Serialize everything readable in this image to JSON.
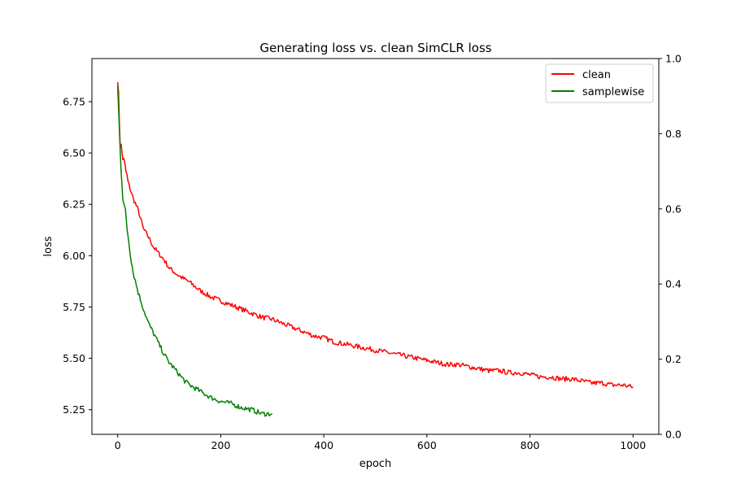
{
  "chart_data": {
    "type": "line",
    "title": "Generating loss vs. clean SimCLR loss",
    "xlabel": "epoch",
    "ylabel": "loss",
    "xlim": [
      -50,
      1050
    ],
    "ylim": [
      5.13,
      6.96
    ],
    "y2lim": [
      0.0,
      1.0
    ],
    "x_ticks": [
      0,
      200,
      400,
      600,
      800,
      1000
    ],
    "y_ticks": [
      5.25,
      5.5,
      5.75,
      6.0,
      6.25,
      6.5,
      6.75
    ],
    "y2_ticks": [
      0.0,
      0.2,
      0.4,
      0.6,
      0.8,
      1.0
    ],
    "x_tick_labels": [
      "0",
      "200",
      "400",
      "600",
      "800",
      "1000"
    ],
    "y_tick_labels": [
      "5.25",
      "5.50",
      "5.75",
      "6.00",
      "6.25",
      "6.50",
      "6.75"
    ],
    "y2_tick_labels": [
      "0.0",
      "0.2",
      "0.4",
      "0.6",
      "0.8",
      "1.0"
    ],
    "grid": false,
    "legend_position": "top-right",
    "series": [
      {
        "name": "clean",
        "color": "#ff0000",
        "x": [
          0,
          5,
          10,
          20,
          30,
          40,
          50,
          60,
          70,
          80,
          90,
          100,
          120,
          140,
          160,
          180,
          200,
          220,
          240,
          260,
          280,
          300,
          320,
          340,
          360,
          380,
          400,
          420,
          440,
          460,
          480,
          500,
          520,
          540,
          560,
          580,
          600,
          620,
          640,
          660,
          680,
          700,
          720,
          740,
          760,
          780,
          800,
          820,
          840,
          860,
          880,
          900,
          920,
          940,
          960,
          980,
          1000
        ],
        "y": [
          6.88,
          6.55,
          6.48,
          6.36,
          6.28,
          6.22,
          6.13,
          6.09,
          6.04,
          6.01,
          5.98,
          5.94,
          5.9,
          5.87,
          5.83,
          5.8,
          5.78,
          5.76,
          5.74,
          5.72,
          5.7,
          5.69,
          5.67,
          5.65,
          5.63,
          5.61,
          5.6,
          5.58,
          5.57,
          5.56,
          5.55,
          5.54,
          5.53,
          5.52,
          5.51,
          5.5,
          5.49,
          5.48,
          5.47,
          5.47,
          5.46,
          5.45,
          5.44,
          5.44,
          5.43,
          5.43,
          5.42,
          5.41,
          5.41,
          5.4,
          5.4,
          5.39,
          5.38,
          5.38,
          5.37,
          5.37,
          5.36
        ]
      },
      {
        "name": "samplewise",
        "color": "#008000",
        "x": [
          0,
          5,
          10,
          15,
          20,
          25,
          30,
          40,
          50,
          60,
          70,
          80,
          90,
          100,
          110,
          120,
          130,
          140,
          160,
          180,
          200,
          220,
          240,
          260,
          280,
          300
        ],
        "y": [
          6.82,
          6.5,
          6.3,
          6.2,
          6.1,
          6.0,
          5.92,
          5.82,
          5.74,
          5.67,
          5.62,
          5.57,
          5.52,
          5.48,
          5.45,
          5.42,
          5.39,
          5.37,
          5.34,
          5.31,
          5.29,
          5.28,
          5.26,
          5.25,
          5.23,
          5.23
        ]
      }
    ]
  }
}
